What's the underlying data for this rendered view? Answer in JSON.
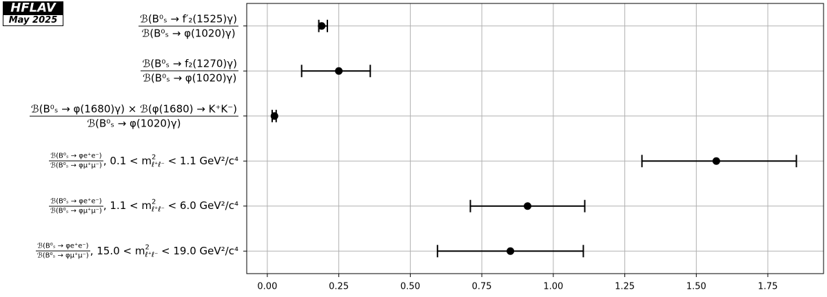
{
  "chart_data": {
    "type": "errorbar",
    "logo": "HFLAV",
    "date": "May 2025",
    "categories": [
      {
        "numerator": "ℬ(B⁰ₛ → f′₂(1525)γ)",
        "denominator": "ℬ(B⁰ₛ → φ(1020)γ)"
      },
      {
        "numerator": "ℬ(B⁰ₛ → f₂(1270)γ)",
        "denominator": "ℬ(B⁰ₛ → φ(1020)γ)"
      },
      {
        "numerator": "ℬ(B⁰ₛ → φ(1680)γ) × ℬ(φ(1680) → K⁺K⁻)",
        "denominator": "ℬ(B⁰ₛ → φ(1020)γ)"
      },
      {
        "numerator": "ℬ(B⁰ₛ → φe⁺e⁻)",
        "denominator": "ℬ(B⁰ₛ → φμ⁺μ⁻)",
        "condition": {
          "text": ",  0.1 < m",
          "sup": "2",
          "sub": "ℓ⁺ℓ⁻",
          "rest": " < 1.1 GeV²/c⁴"
        }
      },
      {
        "numerator": "ℬ(B⁰ₛ → φe⁺e⁻)",
        "denominator": "ℬ(B⁰ₛ → φμ⁺μ⁻)",
        "condition": {
          "text": ",  1.1 < m",
          "sup": "2",
          "sub": "ℓ⁺ℓ⁻",
          "rest": " < 6.0 GeV²/c⁴"
        }
      },
      {
        "numerator": "ℬ(B⁰ₛ → φe⁺e⁻)",
        "denominator": "ℬ(B⁰ₛ → φμ⁺μ⁻)",
        "condition": {
          "text": ",  15.0 < m",
          "sup": "2",
          "sub": "ℓ⁺ℓ⁻",
          "rest": " < 19.0 GeV²/c⁴"
        }
      }
    ],
    "values": [
      0.19,
      0.25,
      0.025,
      1.57,
      0.91,
      0.85
    ],
    "errors_low": [
      0.01,
      0.13,
      0.008,
      0.26,
      0.2,
      0.255
    ],
    "errors_high": [
      0.02,
      0.11,
      0.006,
      0.28,
      0.2,
      0.255
    ],
    "color": "#000000",
    "xlim": [
      -0.072,
      1.945
    ],
    "xticks": [
      {
        "value": 0,
        "label": "0.00"
      },
      {
        "value": 0.25,
        "label": "0.25"
      },
      {
        "value": 0.5,
        "label": "0.50"
      },
      {
        "value": 0.75,
        "label": "0.75"
      },
      {
        "value": 1,
        "label": "1.00"
      },
      {
        "value": 1.25,
        "label": "1.25"
      },
      {
        "value": 1.5,
        "label": "1.50"
      },
      {
        "value": 1.75,
        "label": "1.75"
      }
    ],
    "grid": true
  }
}
